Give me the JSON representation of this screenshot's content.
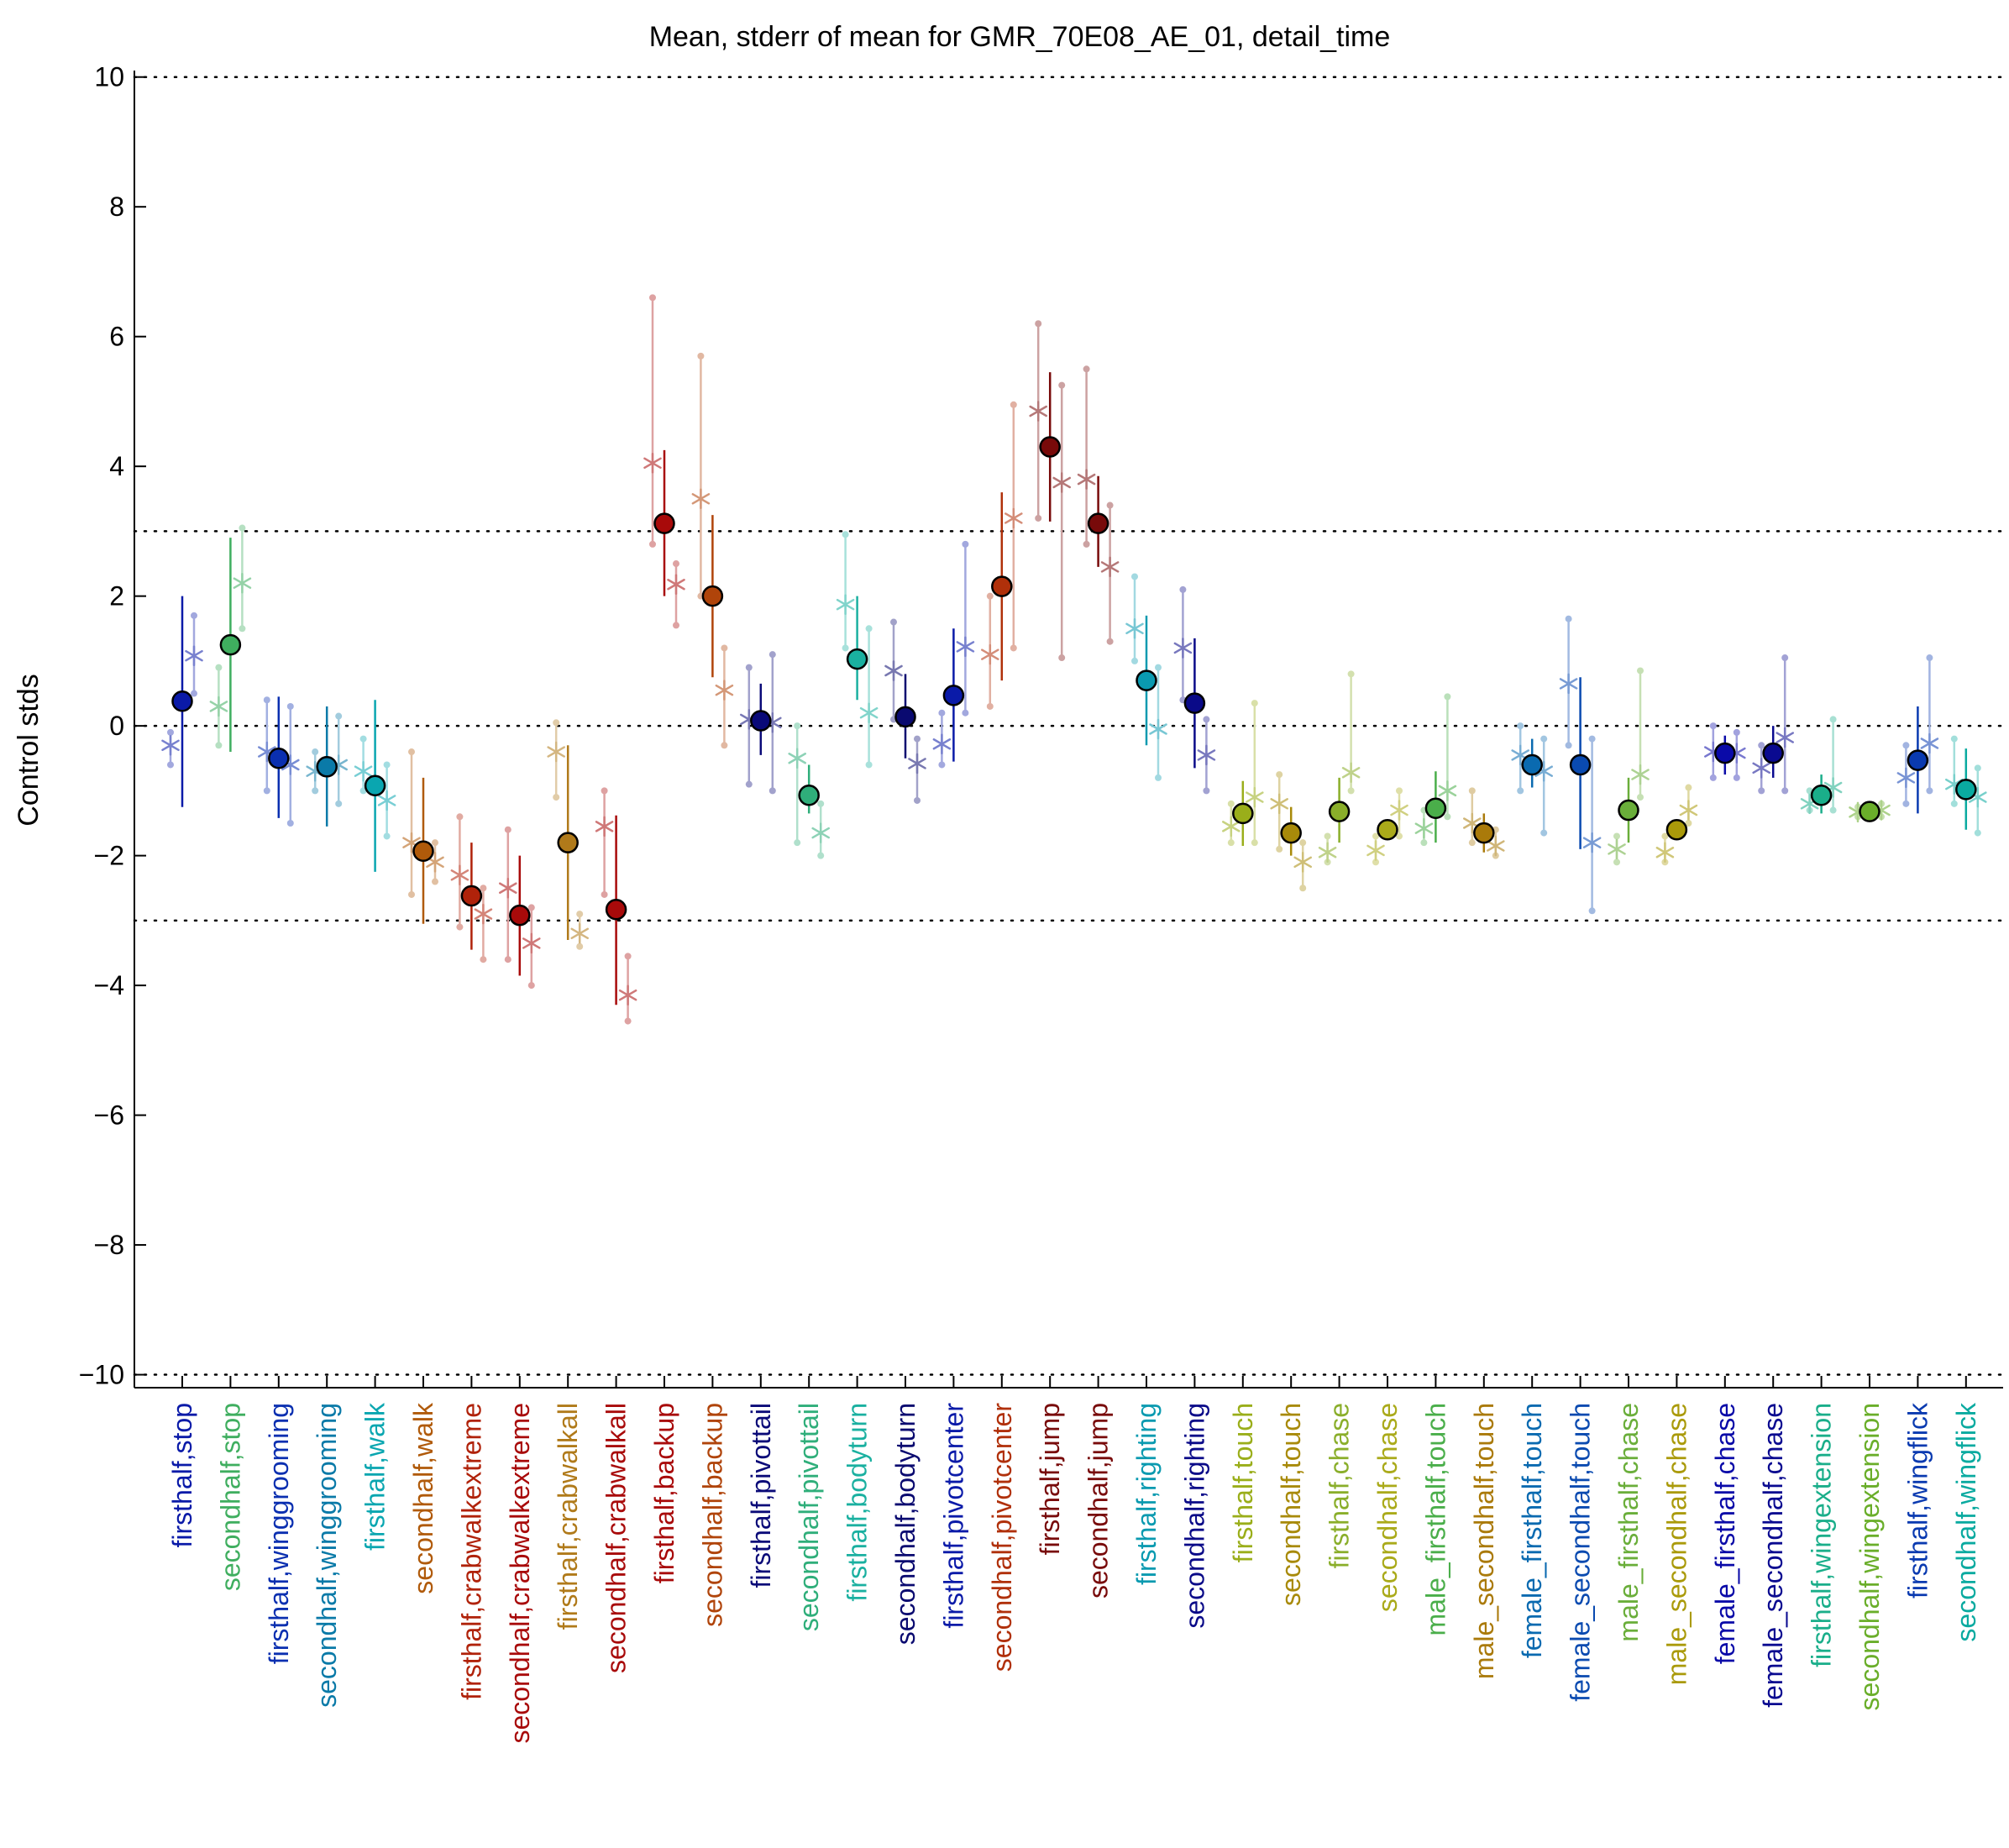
{
  "chart_data": {
    "type": "scatter",
    "title": "Mean, stderr of mean for GMR_70E08_AE_01, detail_time",
    "xlabel": "",
    "ylabel": "Control stds",
    "ylim": [
      -10.2,
      10.1
    ],
    "yticks": [
      10,
      8,
      6,
      4,
      2,
      0,
      -2,
      -4,
      -6,
      -8,
      -10
    ],
    "ytick_labels": [
      "10",
      "8",
      "6",
      "4",
      "2",
      "0",
      "−2",
      "−4",
      "−6",
      "−8",
      "−10"
    ],
    "reference_lines": [
      10,
      3,
      0,
      -3,
      -10
    ],
    "grid": false,
    "categories": [
      "firsthalf,stop",
      "secondhalf,stop",
      "firsthalf,winggrooming",
      "secondhalf,winggrooming",
      "firsthalf,walk",
      "secondhalf,walk",
      "firsthalf,crabwalkextreme",
      "secondhalf,crabwalkextreme",
      "firsthalf,crabwalkall",
      "secondhalf,crabwalkall",
      "firsthalf,backup",
      "secondhalf,backup",
      "firsthalf,pivottail",
      "secondhalf,pivottail",
      "firsthalf,bodyturn",
      "secondhalf,bodyturn",
      "firsthalf,pivotcenter",
      "secondhalf,pivotcenter",
      "firsthalf,jump",
      "secondhalf,jump",
      "firsthalf,righting",
      "secondhalf,righting",
      "firsthalf,touch",
      "secondhalf,touch",
      "firsthalf,chase",
      "secondhalf,chase",
      "male_firsthalf,touch",
      "male_secondhalf,touch",
      "female_firsthalf,touch",
      "female_secondhalf,touch",
      "male_firsthalf,chase",
      "male_secondhalf,chase",
      "female_firsthalf,chase",
      "female_secondhalf,chase",
      "firsthalf,wingextension",
      "secondhalf,wingextension",
      "firsthalf,wingflick",
      "secondhalf,wingflick"
    ],
    "colors": [
      "#0a1aa8",
      "#3fae5f",
      "#0a2fb0",
      "#0a7aa8",
      "#0aa6b0",
      "#b05a0a",
      "#b0220a",
      "#a80a0a",
      "#b07a1a",
      "#a80a0a",
      "#a80a0a",
      "#b0440a",
      "#0a0a78",
      "#2fae7a",
      "#1ab0a0",
      "#0a0a70",
      "#0a1aa8",
      "#b0300a",
      "#780a0a",
      "#780a0a",
      "#0a9ab0",
      "#0a0a88",
      "#9aae1a",
      "#a88a0a",
      "#8aae2a",
      "#aaaa1a",
      "#4aae4a",
      "#aa7a0a",
      "#0a6ab0",
      "#0a4ab0",
      "#6aae3a",
      "#aa9a0a",
      "#0a0aa8",
      "#0a0a90",
      "#1aae8a",
      "#6aae2a",
      "#0a3ab0",
      "#0aaaa0"
    ],
    "series": [
      {
        "name": "mean",
        "values": [
          0.38,
          1.25,
          -0.5,
          -0.63,
          -0.92,
          -1.93,
          -2.62,
          -2.92,
          -1.8,
          -2.83,
          3.12,
          2.0,
          0.08,
          -1.07,
          1.03,
          0.14,
          0.47,
          2.15,
          4.3,
          3.12,
          0.7,
          0.35,
          -1.35,
          -1.65,
          -1.32,
          -1.6,
          -1.27,
          -1.65,
          -0.6,
          -0.6,
          -1.3,
          -1.6,
          -0.42,
          -0.42,
          -1.07,
          -1.32,
          -0.53,
          -0.98
        ],
        "stderr_low": [
          -1.25,
          -0.4,
          -1.42,
          -1.55,
          -2.25,
          -3.05,
          -3.45,
          -3.85,
          -3.3,
          -4.3,
          2.0,
          0.75,
          -0.45,
          -1.35,
          0.4,
          -0.5,
          -0.55,
          0.7,
          3.15,
          2.45,
          -0.3,
          -0.65,
          -1.85,
          -2.0,
          -1.8,
          -1.6,
          -1.8,
          -1.95,
          -0.95,
          -1.9,
          -1.8,
          -1.6,
          -0.75,
          -0.8,
          -1.35,
          -1.45,
          -1.35,
          -1.6
        ],
        "stderr_high": [
          2.0,
          2.9,
          0.45,
          0.3,
          0.4,
          -0.8,
          -1.8,
          -2.0,
          -0.3,
          -1.38,
          4.25,
          3.25,
          0.65,
          -0.6,
          2.0,
          0.8,
          1.5,
          3.6,
          5.45,
          3.85,
          1.7,
          1.35,
          -0.85,
          -1.25,
          -0.8,
          -1.6,
          -0.7,
          -1.35,
          -0.2,
          0.75,
          -0.8,
          -1.6,
          -0.15,
          0.0,
          -0.75,
          -1.2,
          0.3,
          -0.35
        ]
      },
      {
        "name": "experiment_left",
        "values": [
          -0.3,
          0.3,
          -0.4,
          -0.7,
          -0.7,
          -1.8,
          -2.3,
          -2.5,
          -0.4,
          -1.55,
          4.05,
          3.5,
          0.1,
          -0.5,
          1.87,
          0.85,
          -0.28,
          1.1,
          4.85,
          3.8,
          1.5,
          1.2,
          -1.55,
          -1.2,
          -1.95,
          -1.92,
          -1.58,
          -1.5,
          -0.45,
          0.65,
          -1.9,
          -1.95,
          -0.4,
          -0.65,
          -1.2,
          -1.33,
          -0.8,
          -0.9
        ],
        "low": [
          -0.6,
          -0.3,
          -1.0,
          -1.0,
          -1.0,
          -2.6,
          -3.1,
          -3.6,
          -1.1,
          -2.6,
          2.8,
          2.0,
          -0.9,
          -1.8,
          1.2,
          0.1,
          -0.6,
          0.3,
          3.2,
          2.8,
          1.0,
          0.4,
          -1.8,
          -1.9,
          -2.1,
          -2.1,
          -1.8,
          -1.8,
          -1.0,
          -0.3,
          -2.1,
          -2.1,
          -0.8,
          -1.0,
          -1.3,
          -1.4,
          -1.2,
          -1.2
        ],
        "high": [
          -0.1,
          0.9,
          0.4,
          -0.4,
          -0.2,
          -0.4,
          -1.4,
          -1.6,
          0.05,
          -1.0,
          6.6,
          5.7,
          0.9,
          0.0,
          2.95,
          1.6,
          0.2,
          2.0,
          6.2,
          5.5,
          2.3,
          2.1,
          -1.2,
          -0.75,
          -1.7,
          -1.7,
          -1.3,
          -1.0,
          0.0,
          1.65,
          -1.7,
          -1.7,
          0.0,
          -0.3,
          -1.0,
          -1.25,
          -0.3,
          -0.2
        ]
      },
      {
        "name": "experiment_right",
        "values": [
          1.08,
          2.2,
          -0.6,
          -0.6,
          -1.15,
          -2.1,
          -2.9,
          -3.35,
          -3.2,
          -4.15,
          2.18,
          0.55,
          0.05,
          -1.65,
          0.2,
          -0.58,
          1.22,
          3.2,
          3.75,
          2.45,
          -0.05,
          -0.45,
          -1.1,
          -2.1,
          -0.72,
          -1.3,
          -1.0,
          -1.85,
          -0.7,
          -1.8,
          -0.75,
          -1.3,
          -0.42,
          -0.18,
          -0.95,
          -1.3,
          -0.27,
          -1.1
        ],
        "low": [
          0.5,
          1.5,
          -1.5,
          -1.2,
          -1.7,
          -2.4,
          -3.6,
          -4.0,
          -3.4,
          -4.55,
          1.55,
          -0.3,
          -1.0,
          -2.0,
          -0.6,
          -1.15,
          0.2,
          1.2,
          1.05,
          1.3,
          -0.8,
          -1.0,
          -1.8,
          -2.5,
          -1.0,
          -1.7,
          -1.4,
          -2.0,
          -1.65,
          -2.85,
          -1.1,
          -1.5,
          -0.8,
          -1.0,
          -1.3,
          -1.4,
          -1.0,
          -1.65
        ],
        "high": [
          1.7,
          3.05,
          0.3,
          0.15,
          -0.6,
          -1.8,
          -2.5,
          -2.8,
          -2.9,
          -3.55,
          2.5,
          1.2,
          1.1,
          -1.2,
          1.5,
          -0.2,
          2.8,
          4.95,
          5.25,
          3.4,
          0.9,
          0.1,
          0.35,
          -1.8,
          0.8,
          -1.0,
          0.45,
          -1.6,
          -0.2,
          -0.2,
          0.85,
          -0.95,
          -0.1,
          1.05,
          0.1,
          -1.2,
          1.05,
          -0.65
        ]
      }
    ]
  }
}
